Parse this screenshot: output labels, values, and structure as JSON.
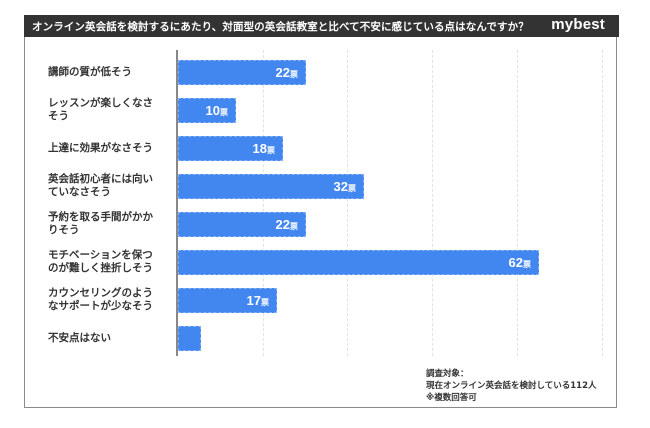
{
  "header": {
    "title": "オンライン英会話を検討するにあたり、対面型の英会話教室と比べて不安に感じている点はなんですか？",
    "brand": "mybest"
  },
  "colors": {
    "bar": "#4286f0",
    "header_bg": "#333333",
    "text": "#333333"
  },
  "chart_data": {
    "type": "bar",
    "orientation": "horizontal",
    "title": "オンライン英会話を検討するにあたり、対面型の英会話教室と比べて不安に感じている点はなんですか？",
    "xlabel": "",
    "ylabel": "",
    "unit": "票",
    "grid": true,
    "categories": [
      "講師の質が低そう",
      "レッスンが楽しくなさそう",
      "上達に効果がなさそう",
      "英会話初心者には向いていなさそう",
      "予約を取る手間がかかりそう",
      "モチベーションを保つのが難しく挫折しそう",
      "カウンセリングのようなサポートが少なそう",
      "不安点はない"
    ],
    "values": [
      22,
      10,
      18,
      32,
      22,
      62,
      17,
      4
    ],
    "value_labels": [
      "22",
      "10",
      "18",
      "32",
      "22",
      "62",
      "17",
      ""
    ],
    "xlim": [
      0,
      74
    ]
  },
  "rows": [
    {
      "line1": "講師の質が低そう",
      "line2": "",
      "label": "22",
      "unit": "票"
    },
    {
      "line1": "レッスンが楽しくなさ",
      "line2": "そう",
      "label": "10",
      "unit": "票"
    },
    {
      "line1": "上達に効果がなさそう",
      "line2": "",
      "label": "18",
      "unit": "票"
    },
    {
      "line1": "英会話初心者には向い",
      "line2": "ていなさそう",
      "label": "32",
      "unit": "票"
    },
    {
      "line1": "予約を取る手間がかか",
      "line2": "りそう",
      "label": "22",
      "unit": "票"
    },
    {
      "line1": "モチベーションを保つ",
      "line2": "のが難しく挫折しそう",
      "label": "62",
      "unit": "票"
    },
    {
      "line1": "カウンセリングのよう",
      "line2": "なサポートが少なそう",
      "label": "17",
      "unit": "票"
    },
    {
      "line1": "不安点はない",
      "line2": "",
      "label": "",
      "unit": ""
    }
  ],
  "note": {
    "line1": "調査対象：",
    "line2": "現在オンライン英会話を検討している112人",
    "line3": "※複数回答可"
  }
}
